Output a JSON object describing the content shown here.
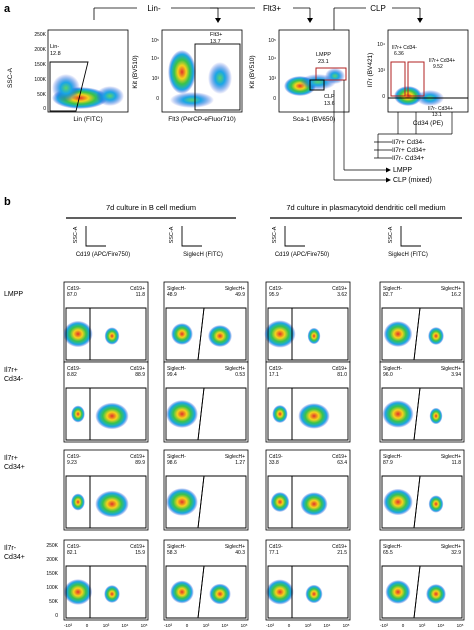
{
  "panel_a": {
    "label": "a",
    "tree": {
      "lin": "Lin-",
      "flt3": "Flt3+",
      "clp": "CLP"
    },
    "plots": [
      {
        "id": "a1",
        "x_label": "Lin (FITC)",
        "y_label": "SSC-A",
        "y_ticks": [
          "250K",
          "200K",
          "150K",
          "100K",
          "50K",
          "0"
        ],
        "gates": [
          {
            "name": "Lin-",
            "value": "12.8"
          }
        ]
      },
      {
        "id": "a2",
        "x_label": "Flt3 (PerCP-eFluor710)",
        "y_label": "Kit (BV510)",
        "y_ticks": [
          "10⁵",
          "10⁴",
          "10³",
          "0"
        ],
        "gates": [
          {
            "name": "Flt3+",
            "value": "13.7"
          }
        ]
      },
      {
        "id": "a3",
        "x_label": "Sca-1 (BV650)",
        "y_label": "Kit (BV510)",
        "y_ticks": [
          "10⁵",
          "10⁴",
          "10³",
          "0"
        ],
        "gates": [
          {
            "name": "LMPP",
            "value": "23.1"
          },
          {
            "name": "CLP",
            "value": "13.6"
          }
        ]
      },
      {
        "id": "a4",
        "x_label": "Cd34 (PE)",
        "y_label": "Il7r (BV421)",
        "y_ticks": [
          "10⁴",
          "10³",
          "0"
        ],
        "gates": [
          {
            "name": "Il7r+ Cd34-",
            "value": "6.36"
          },
          {
            "name": "Il7r+ Cd34+",
            "value": "9.52"
          },
          {
            "name": "Il7r- Cd34+",
            "value": "13.1"
          }
        ]
      }
    ],
    "outputs": [
      "Il7r+ Cd34-",
      "Il7r+ Cd34+",
      "Il7r-  Cd34+",
      "LMPP",
      "CLP (mixed)"
    ]
  },
  "panel_b": {
    "label": "b",
    "culture_headers": [
      "7d culture in   B cell medium",
      "7d culture in   plasmacytoid dendritic cell medium"
    ],
    "y_axis_label": "SSC-A",
    "column_x_labels": [
      "Cd19 (APC/Fire750)",
      "SiglecH (FITC)",
      "Cd19 (APC/Fire750)",
      "SiglecH (FITC)"
    ],
    "rows": [
      {
        "label_lines": [
          "LMPP"
        ],
        "cells": [
          {
            "left": {
              "name": "Cd19-",
              "value": "87.0"
            },
            "right": {
              "name": "Cd19+",
              "value": "11.8"
            }
          },
          {
            "left": {
              "name": "SiglecH-",
              "value": "48.9"
            },
            "right": {
              "name": "SiglecH+",
              "value": "49.9"
            }
          },
          {
            "left": {
              "name": "Cd19-",
              "value": "95.9"
            },
            "right": {
              "name": "Cd19+",
              "value": "3.62"
            }
          },
          {
            "left": {
              "name": "SiglecH-",
              "value": "82.7"
            },
            "right": {
              "name": "SiglecH+",
              "value": "16.2"
            }
          }
        ]
      },
      {
        "label_lines": [
          "Il7r+",
          "Cd34-"
        ],
        "cells": [
          {
            "left": {
              "name": "Cd19-",
              "value": "8.82"
            },
            "right": {
              "name": "Cd19+",
              "value": "88.9"
            }
          },
          {
            "left": {
              "name": "SiglecH-",
              "value": "99.4"
            },
            "right": {
              "name": "SiglecH+",
              "value": "0.53"
            }
          },
          {
            "left": {
              "name": "Cd19-",
              "value": "17.1"
            },
            "right": {
              "name": "Cd19+",
              "value": "81.0"
            }
          },
          {
            "left": {
              "name": "SiglecH-",
              "value": "96.0"
            },
            "right": {
              "name": "SiglecH+",
              "value": "3.94"
            }
          }
        ]
      },
      {
        "label_lines": [
          "Il7r+",
          "Cd34+"
        ],
        "cells": [
          {
            "left": {
              "name": "Cd19-",
              "value": "9.23"
            },
            "right": {
              "name": "Cd19+",
              "value": "89.9"
            }
          },
          {
            "left": {
              "name": "SiglecH-",
              "value": "98.6"
            },
            "right": {
              "name": "SiglecH+",
              "value": "1.27"
            }
          },
          {
            "left": {
              "name": "Cd19-",
              "value": "33.8"
            },
            "right": {
              "name": "Cd19+",
              "value": "63.4"
            }
          },
          {
            "left": {
              "name": "SiglecH-",
              "value": "87.9"
            },
            "right": {
              "name": "SiglecH+",
              "value": "11.8"
            }
          }
        ]
      },
      {
        "label_lines": [
          "Il7r-",
          "Cd34+"
        ],
        "cells": [
          {
            "left": {
              "name": "Cd19-",
              "value": "82.1"
            },
            "right": {
              "name": "Cd19+",
              "value": "15.9"
            }
          },
          {
            "left": {
              "name": "SiglecH-",
              "value": "58.3"
            },
            "right": {
              "name": "SiglecH+",
              "value": "40.3"
            }
          },
          {
            "left": {
              "name": "Cd19-",
              "value": "77.1"
            },
            "right": {
              "name": "Cd19+",
              "value": "21.5"
            }
          },
          {
            "left": {
              "name": "SiglecH-",
              "value": "65.5"
            },
            "right": {
              "name": "SiglecH+",
              "value": "32.9"
            }
          }
        ]
      }
    ],
    "bottom_y_ticks": [
      "250K",
      "200K",
      "150K",
      "100K",
      "50K",
      "0"
    ],
    "bottom_x_ticks": [
      "-10³",
      "0",
      "10³",
      "10⁴",
      "10⁵"
    ]
  },
  "colors": {
    "gate": "#000000",
    "gate_red": "#b22222",
    "density_low": "#1f3fd6",
    "density_high": "#e0322a"
  }
}
